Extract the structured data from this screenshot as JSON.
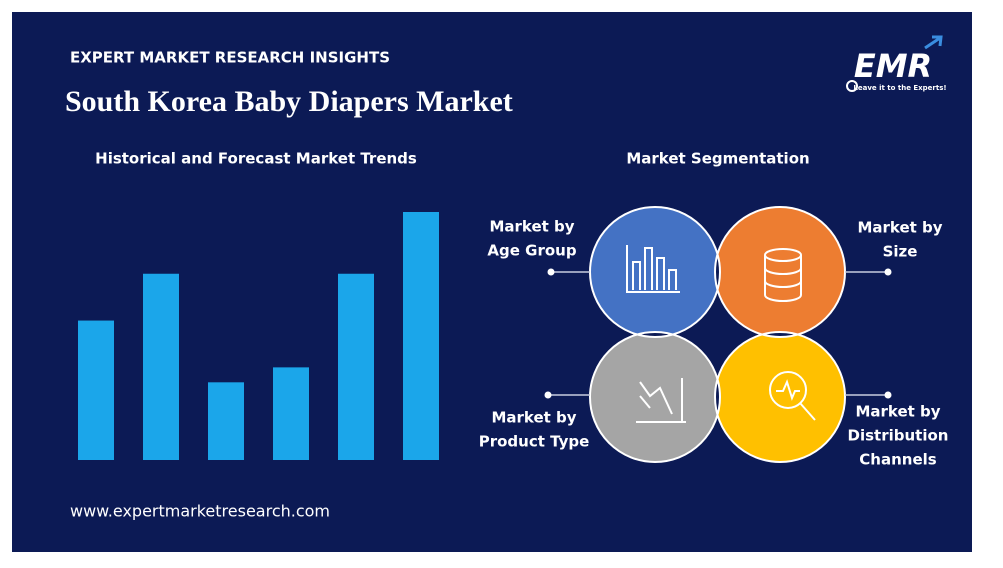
{
  "header": {
    "kicker": "EXPERT MARKET RESEARCH INSIGHTS",
    "title": "South Korea Baby Diapers Market"
  },
  "logo": {
    "name": "EMR",
    "tagline": "Leave it to the Experts!"
  },
  "chart_data": {
    "type": "bar",
    "title": "Historical and Forecast Market Trends",
    "values": [
      140,
      187,
      78,
      93,
      187,
      249
    ],
    "color": "#1ba6ea",
    "ylim": [
      0,
      250
    ],
    "grid": false
  },
  "segmentation": {
    "title": "Market Segmentation",
    "items": [
      {
        "lines": [
          "Market by",
          "Age Group"
        ],
        "color": "#4472c4"
      },
      {
        "lines": [
          "Market by",
          "Size"
        ],
        "color": "#ed7d31"
      },
      {
        "lines": [
          "Market by",
          "Product Type"
        ],
        "color": "#a5a5a5"
      },
      {
        "lines": [
          "Market by",
          "Distribution",
          "Channels"
        ],
        "color": "#ffc000"
      }
    ]
  },
  "footer": {
    "url": "www.expertmarketresearch.com"
  }
}
